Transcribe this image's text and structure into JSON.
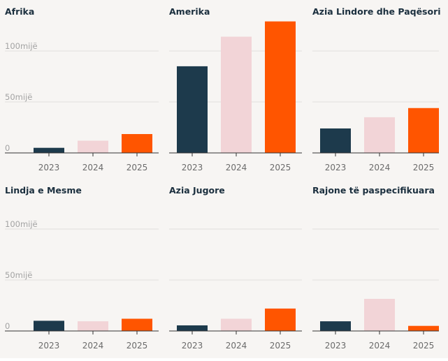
{
  "chart_data": [
    {
      "type": "bar",
      "title": "Afrika",
      "categories": [
        "2023",
        "2024",
        "2025"
      ],
      "values": [
        5000,
        12000,
        18500
      ],
      "ylim": [
        0,
        130000
      ],
      "yticks": [
        0,
        50000,
        100000
      ],
      "ytick_labels": [
        "0",
        "50mijë",
        "100mijë"
      ],
      "show_ytick_labels": true,
      "grid": true
    },
    {
      "type": "bar",
      "title": "Amerika",
      "categories": [
        "2023",
        "2024",
        "2025"
      ],
      "values": [
        85000,
        114000,
        129000
      ],
      "ylim": [
        0,
        130000
      ],
      "yticks": [
        0,
        50000,
        100000
      ],
      "ytick_labels": [
        "0",
        "50mijë",
        "100mijë"
      ],
      "show_ytick_labels": false,
      "grid": true
    },
    {
      "type": "bar",
      "title": "Azia Lindore dhe Paqësori",
      "categories": [
        "2023",
        "2024",
        "2025"
      ],
      "values": [
        24000,
        35000,
        44000
      ],
      "ylim": [
        0,
        130000
      ],
      "yticks": [
        0,
        50000,
        100000
      ],
      "ytick_labels": [
        "0",
        "50mijë",
        "100mijë"
      ],
      "show_ytick_labels": false,
      "grid": true
    },
    {
      "type": "bar",
      "title": "Lindja e Mesme",
      "categories": [
        "2023",
        "2024",
        "2025"
      ],
      "values": [
        10000,
        9500,
        12000
      ],
      "ylim": [
        0,
        130000
      ],
      "yticks": [
        0,
        50000,
        100000
      ],
      "ytick_labels": [
        "0",
        "50mijë",
        "100mijë"
      ],
      "show_ytick_labels": true,
      "grid": true
    },
    {
      "type": "bar",
      "title": "Azia Jugore",
      "categories": [
        "2023",
        "2024",
        "2025"
      ],
      "values": [
        5500,
        12000,
        22000
      ],
      "ylim": [
        0,
        130000
      ],
      "yticks": [
        0,
        50000,
        100000
      ],
      "ytick_labels": [
        "0",
        "50mijë",
        "100mijë"
      ],
      "show_ytick_labels": false,
      "grid": true
    },
    {
      "type": "bar",
      "title": "Rajone të paspecifikuara",
      "categories": [
        "2023",
        "2024",
        "2025"
      ],
      "values": [
        9500,
        31500,
        5000
      ],
      "ylim": [
        0,
        130000
      ],
      "yticks": [
        0,
        50000,
        100000
      ],
      "ytick_labels": [
        "0",
        "50mijë",
        "100mijë"
      ],
      "show_ytick_labels": false,
      "grid": true
    }
  ],
  "colors": {
    "2023": "#1d3a4c",
    "2024": "#f2d4d7",
    "2025": "#ff5500",
    "grid": "#e2e0de",
    "axis": "#333333"
  }
}
